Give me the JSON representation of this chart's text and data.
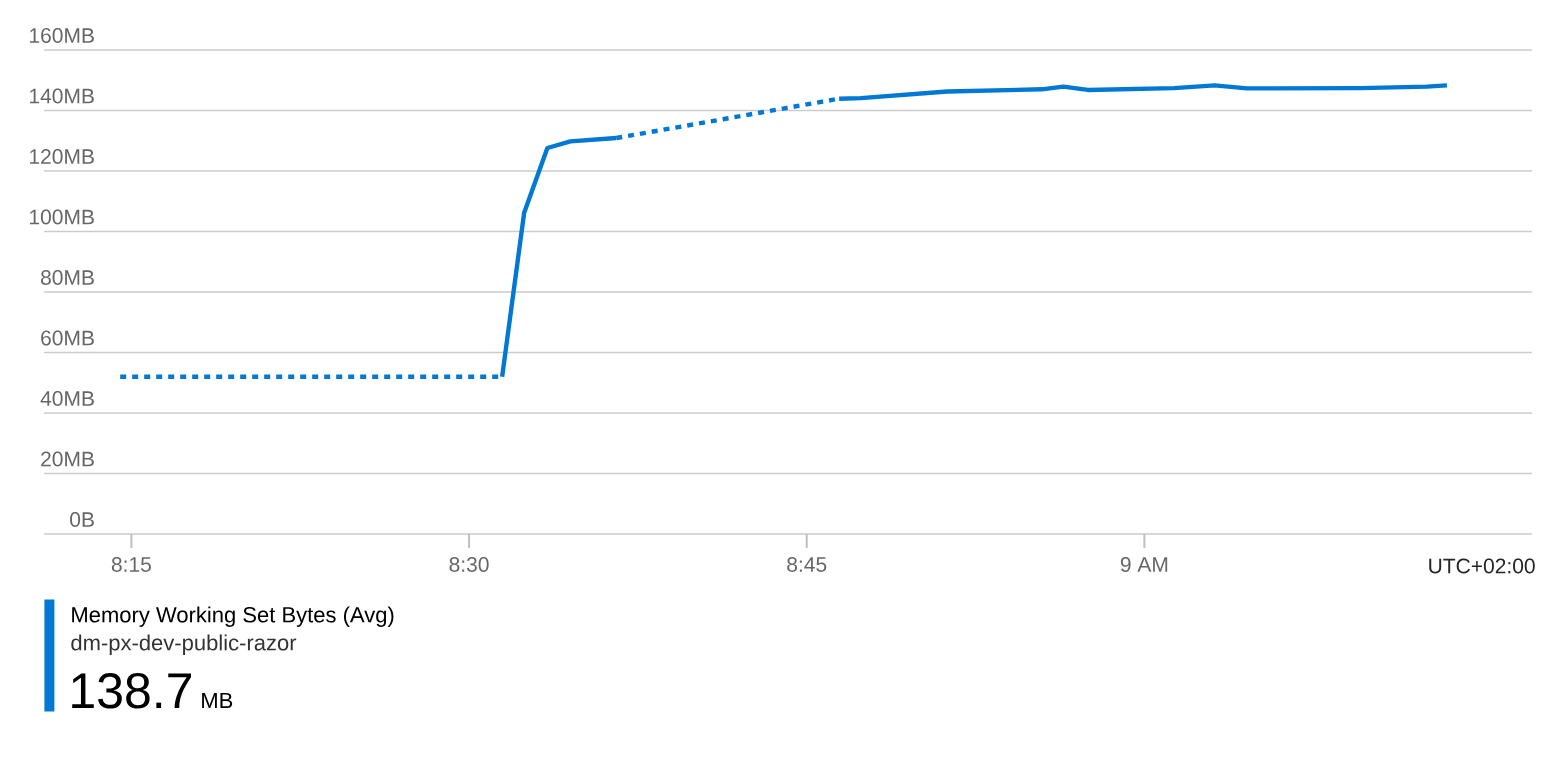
{
  "chart_data": {
    "type": "line",
    "xlim": [
      8.1853,
      9.287
    ],
    "ylim": [
      0,
      160
    ],
    "xticks": [
      {
        "value": 8.25,
        "label": "8:15"
      },
      {
        "value": 8.5,
        "label": "8:30"
      },
      {
        "value": 8.75,
        "label": "8:45"
      },
      {
        "value": 9,
        "label": "9 AM"
      }
    ],
    "yticks": [
      {
        "value": 0,
        "label": "0B"
      },
      {
        "value": 20,
        "label": "20MB"
      },
      {
        "value": 40,
        "label": "40MB"
      },
      {
        "value": 60,
        "label": "60MB"
      },
      {
        "value": 80,
        "label": "80MB"
      },
      {
        "value": 100,
        "label": "100MB"
      },
      {
        "value": 120,
        "label": "120MB"
      },
      {
        "value": 140,
        "label": "140MB"
      },
      {
        "value": 160,
        "label": "160MB"
      }
    ],
    "grid": "y",
    "legend": "bottom",
    "marker": "none",
    "series": [
      {
        "color": "#0078d4",
        "line_style": "dotted",
        "x": [
          8.2417,
          8.5245,
          8.55,
          8.609,
          8.774
        ],
        "values": [
          52,
          52,
          null,
          130.9,
          143.9
        ]
      },
      {
        "name": "Memory Working Set Bytes (Avg)",
        "color": "#0078d4",
        "line_style": "solid",
        "x": [
          8.5245,
          8.5408,
          8.558,
          8.575,
          8.609,
          8.7,
          8.774,
          8.79,
          8.854,
          8.924,
          8.94,
          8.958,
          9.022,
          9.052,
          9.076,
          9.16,
          9.209,
          9.224
        ],
        "values": [
          52,
          106.2,
          127.6,
          129.8,
          130.9,
          null,
          143.9,
          144.1,
          146.3,
          147.0,
          147.9,
          146.8,
          147.4,
          148.3,
          147.3,
          147.4,
          147.9,
          148.3
        ]
      }
    ],
    "annotations": [
      "UTC+02:00",
      "dm-px-dev-public-razor",
      "138.7",
      "MB"
    ]
  }
}
